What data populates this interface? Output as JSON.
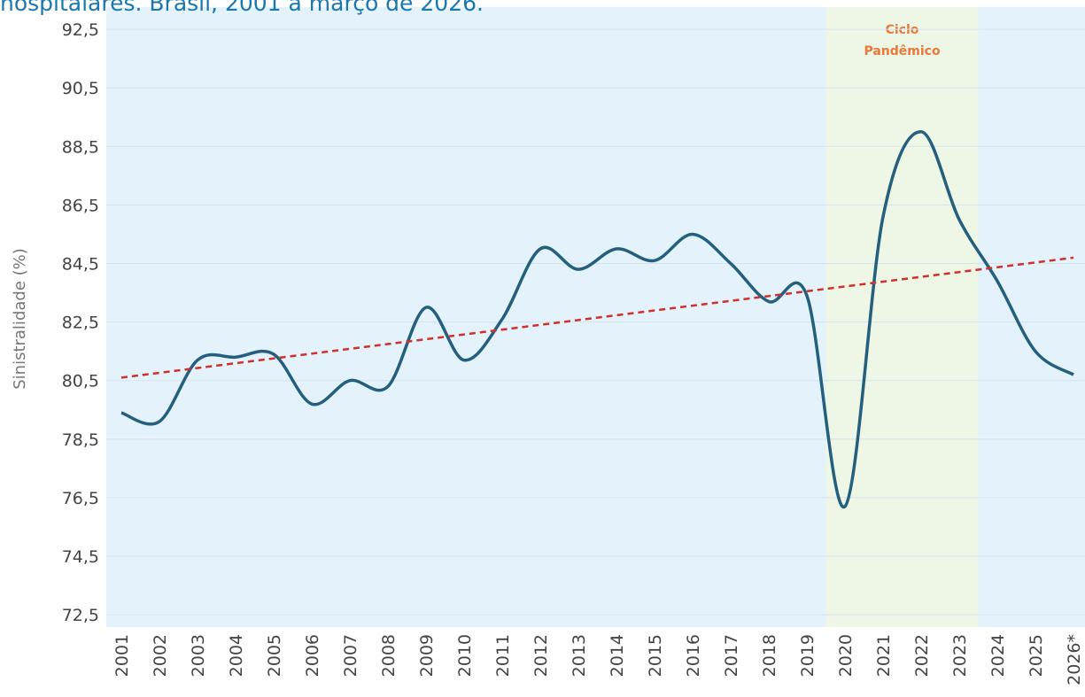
{
  "chart_data": {
    "type": "line",
    "title": "hospitalares. Brasil, 2001 a março de 2026.",
    "y_label": "Sinistralidade (%)",
    "categories": [
      "2001",
      "2002",
      "2003",
      "2004",
      "2005",
      "2006",
      "2007",
      "2008",
      "2009",
      "2010",
      "2011",
      "2012",
      "2013",
      "2014",
      "2015",
      "2016",
      "2017",
      "2018",
      "2019",
      "2020",
      "2021",
      "2022",
      "2023",
      "2024",
      "2025",
      "2026*"
    ],
    "series": [
      {
        "color": "#24607e",
        "values": [
          79.4,
          79.1,
          81.2,
          81.3,
          81.4,
          79.7,
          80.5,
          80.3,
          83.0,
          81.2,
          82.6,
          85.0,
          84.3,
          85.0,
          84.6,
          85.5,
          84.5,
          83.2,
          83.4,
          76.2,
          86.1,
          89.0,
          86.0,
          83.9,
          81.5,
          80.7
        ]
      }
    ],
    "trend": {
      "color": "#d0312d",
      "values": [
        80.6,
        84.7
      ]
    },
    "highlight": {
      "from": "2020",
      "to": "2023",
      "color": "#eef6e6",
      "label": [
        "Ciclo",
        "Pandêmico"
      ],
      "label_color": "#e8793a"
    },
    "background": "#e3f2fb",
    "ylim": [
      72.08,
      93.26
    ],
    "yticks": [
      {
        "value": 72.5,
        "label": "72,5"
      },
      {
        "value": 74.5,
        "label": "74,5"
      },
      {
        "value": 76.5,
        "label": "76,5"
      },
      {
        "value": 78.5,
        "label": "78,5"
      },
      {
        "value": 80.5,
        "label": "80,5"
      },
      {
        "value": 82.5,
        "label": "82,5"
      },
      {
        "value": 84.5,
        "label": "84,5"
      },
      {
        "value": 86.5,
        "label": "86,5"
      },
      {
        "value": 88.5,
        "label": "88,5"
      },
      {
        "value": 90.5,
        "label": "90,5"
      },
      {
        "value": 92.5,
        "label": "92,5"
      }
    ],
    "grid": true
  }
}
